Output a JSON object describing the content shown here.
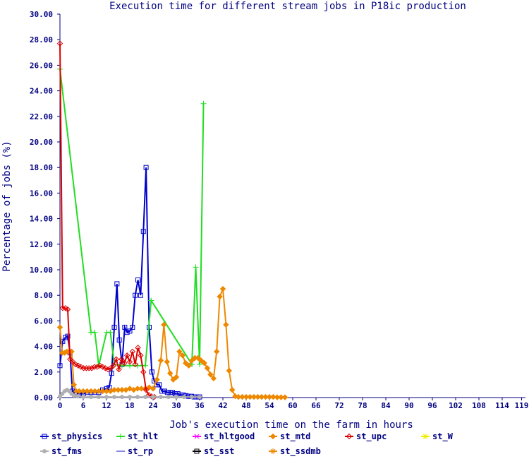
{
  "chart_data": {
    "type": "line",
    "title": "Execution time for different stream jobs in P18ic production",
    "xlabel": "Job's execution time on the farm in hours",
    "ylabel": "Percentage of jobs (%)",
    "xlim": [
      0,
      120
    ],
    "ylim": [
      0,
      30
    ],
    "x_ticks": [
      "0",
      "6",
      "12",
      "18",
      "24",
      "30",
      "36",
      "42",
      "48",
      "54",
      "60",
      "66",
      "72",
      "78",
      "84",
      "90",
      "96",
      "102",
      "108",
      "114",
      "119"
    ],
    "y_ticks": [
      "0.00",
      "2.00",
      "4.00",
      "6.00",
      "8.00",
      "10.00",
      "12.00",
      "14.00",
      "16.00",
      "18.00",
      "20.00",
      "22.00",
      "24.00",
      "26.00",
      "28.00",
      "30.00"
    ],
    "grid": false,
    "legend_position": "bottom",
    "series": [
      {
        "name": "st_physics",
        "color": "#0000cc",
        "marker": "square",
        "points": [
          [
            0,
            2.5
          ],
          [
            0.7,
            4.4
          ],
          [
            1.4,
            4.7
          ],
          [
            2,
            4.8
          ],
          [
            2.6,
            3.5
          ],
          [
            3.2,
            0.5
          ],
          [
            4,
            0.4
          ],
          [
            5,
            0.3
          ],
          [
            6,
            0.3
          ],
          [
            7,
            0.4
          ],
          [
            8,
            0.4
          ],
          [
            9,
            0.4
          ],
          [
            10,
            0.4
          ],
          [
            11,
            0.6
          ],
          [
            12,
            0.7
          ],
          [
            12.7,
            0.8
          ],
          [
            13.3,
            1.9
          ],
          [
            14,
            5.5
          ],
          [
            14.7,
            8.9
          ],
          [
            15.3,
            4.5
          ],
          [
            16,
            2.6
          ],
          [
            16.7,
            5.5
          ],
          [
            17.3,
            5.1
          ],
          [
            18,
            5.2
          ],
          [
            18.7,
            5.5
          ],
          [
            19.4,
            8.0
          ],
          [
            20.1,
            9.2
          ],
          [
            20.8,
            8.0
          ],
          [
            21.5,
            13.0
          ],
          [
            22.2,
            18.0
          ],
          [
            23,
            5.5
          ],
          [
            23.7,
            2.0
          ],
          [
            24.3,
            1.3
          ],
          [
            25,
            1.0
          ],
          [
            25.6,
            1.0
          ],
          [
            26.3,
            0.5
          ],
          [
            27,
            0.5
          ],
          [
            27.7,
            0.4
          ],
          [
            28.4,
            0.4
          ],
          [
            29,
            0.4
          ],
          [
            29.7,
            0.3
          ],
          [
            30.4,
            0.3
          ],
          [
            31.1,
            0.2
          ],
          [
            31.8,
            0.2
          ],
          [
            32.5,
            0.15
          ],
          [
            33.2,
            0.1
          ],
          [
            33.9,
            0.1
          ],
          [
            34.6,
            0.05
          ],
          [
            35.3,
            0.05
          ],
          [
            36,
            0.05
          ]
        ]
      },
      {
        "name": "st_hlt",
        "color": "#22dd22",
        "marker": "plus",
        "points": [
          [
            0,
            25.7
          ],
          [
            8,
            5.1
          ],
          [
            9,
            5.1
          ],
          [
            10,
            2.5
          ],
          [
            12,
            5.1
          ],
          [
            13,
            5.1
          ],
          [
            14,
            2.6
          ],
          [
            16,
            2.5
          ],
          [
            18,
            2.5
          ],
          [
            20,
            2.5
          ],
          [
            22,
            2.5
          ],
          [
            23.5,
            7.6
          ],
          [
            34,
            2.6
          ],
          [
            35,
            10.2
          ],
          [
            36,
            2.6
          ],
          [
            37,
            23.0
          ]
        ]
      },
      {
        "name": "st_hltgood",
        "color": "#ff00ff",
        "marker": "x",
        "points": []
      },
      {
        "name": "st_mtd",
        "color": "#ee8800",
        "marker": "diamond",
        "points": [
          [
            0,
            5.5
          ],
          [
            0.6,
            3.5
          ],
          [
            1.2,
            3.5
          ],
          [
            1.8,
            3.6
          ],
          [
            2.4,
            3.6
          ],
          [
            3,
            3.6
          ],
          [
            3.6,
            1.0
          ],
          [
            4.2,
            0.5
          ],
          [
            5,
            0.5
          ],
          [
            6,
            0.5
          ],
          [
            7,
            0.5
          ],
          [
            8,
            0.5
          ],
          [
            9,
            0.5
          ],
          [
            10,
            0.5
          ],
          [
            11,
            0.5
          ],
          [
            12,
            0.5
          ],
          [
            13,
            0.5
          ],
          [
            14,
            0.6
          ],
          [
            15,
            0.6
          ],
          [
            16,
            0.6
          ],
          [
            17,
            0.6
          ],
          [
            18,
            0.7
          ],
          [
            19,
            0.6
          ],
          [
            20,
            0.7
          ],
          [
            21,
            0.7
          ],
          [
            22,
            0.7
          ],
          [
            23,
            0.8
          ],
          [
            24,
            0.7
          ],
          [
            25,
            1.4
          ],
          [
            26,
            2.9
          ],
          [
            26.8,
            5.7
          ],
          [
            27.6,
            2.8
          ],
          [
            28.4,
            1.9
          ],
          [
            29.2,
            1.4
          ],
          [
            30,
            1.6
          ],
          [
            30.8,
            3.6
          ],
          [
            31.6,
            3.3
          ],
          [
            32.4,
            2.7
          ],
          [
            33.2,
            2.5
          ],
          [
            34,
            2.9
          ],
          [
            34.8,
            3.1
          ],
          [
            35.6,
            3.1
          ],
          [
            36.4,
            2.9
          ],
          [
            37.2,
            2.7
          ],
          [
            38,
            2.3
          ],
          [
            38.8,
            1.8
          ],
          [
            39.6,
            1.5
          ],
          [
            40.4,
            3.6
          ],
          [
            41.2,
            7.9
          ],
          [
            42,
            8.5
          ],
          [
            42.8,
            5.7
          ],
          [
            43.6,
            2.1
          ],
          [
            44.4,
            0.6
          ],
          [
            45.2,
            0.1
          ],
          [
            46,
            0.05
          ],
          [
            47,
            0.05
          ],
          [
            48,
            0.05
          ],
          [
            49,
            0.05
          ],
          [
            50,
            0.05
          ],
          [
            51,
            0.05
          ],
          [
            52,
            0.05
          ],
          [
            53,
            0.05
          ],
          [
            54,
            0.05
          ],
          [
            55,
            0.05
          ],
          [
            56,
            0.02
          ],
          [
            57,
            0.02
          ],
          [
            58,
            0.02
          ]
        ]
      },
      {
        "name": "st_upc",
        "color": "#dd0000",
        "marker": "diamond-open",
        "points": [
          [
            0,
            27.7
          ],
          [
            0.7,
            7.0
          ],
          [
            1.4,
            7.0
          ],
          [
            2,
            6.9
          ],
          [
            2.6,
            3.0
          ],
          [
            3.3,
            2.8
          ],
          [
            4,
            2.6
          ],
          [
            4.7,
            2.5
          ],
          [
            5.4,
            2.4
          ],
          [
            6.1,
            2.3
          ],
          [
            6.8,
            2.3
          ],
          [
            7.5,
            2.3
          ],
          [
            8.2,
            2.3
          ],
          [
            8.9,
            2.4
          ],
          [
            9.6,
            2.4
          ],
          [
            10.3,
            2.5
          ],
          [
            11,
            2.4
          ],
          [
            11.7,
            2.3
          ],
          [
            12.4,
            2.2
          ],
          [
            13.1,
            2.3
          ],
          [
            13.8,
            2.5
          ],
          [
            14.5,
            3.0
          ],
          [
            15.2,
            2.2
          ],
          [
            15.9,
            3.0
          ],
          [
            16.6,
            2.7
          ],
          [
            17.3,
            3.3
          ],
          [
            18,
            2.8
          ],
          [
            18.7,
            3.6
          ],
          [
            19.4,
            2.6
          ],
          [
            20.1,
            3.9
          ],
          [
            20.8,
            3.3
          ],
          [
            21.5,
            2.0
          ],
          [
            22.2,
            0.6
          ],
          [
            22.9,
            0.2
          ],
          [
            23.6,
            0.1
          ],
          [
            24.3,
            0.05
          ]
        ]
      },
      {
        "name": "st_W",
        "color": "#eeee00",
        "marker": "star",
        "points": []
      },
      {
        "name": "st_fms",
        "color": "#b0b0b0",
        "marker": "circle",
        "points": [
          [
            0,
            0.1
          ],
          [
            0.6,
            0.3
          ],
          [
            1.2,
            0.5
          ],
          [
            1.8,
            0.6
          ],
          [
            2.4,
            0.5
          ],
          [
            3,
            0.3
          ],
          [
            3.6,
            0.15
          ],
          [
            4.5,
            0.1
          ],
          [
            6,
            0.05
          ],
          [
            8,
            0.05
          ],
          [
            10,
            0.05
          ],
          [
            12,
            0.05
          ],
          [
            14,
            0.05
          ],
          [
            16,
            0.05
          ],
          [
            18,
            0.05
          ],
          [
            20,
            0.05
          ],
          [
            22,
            0.05
          ],
          [
            24,
            0.05
          ],
          [
            26,
            0.05
          ],
          [
            28,
            0.05
          ],
          [
            30,
            0.05
          ],
          [
            32,
            0.05
          ],
          [
            34,
            0.05
          ],
          [
            36,
            0.05
          ]
        ]
      },
      {
        "name": "st_rp",
        "color": "#8888dd",
        "marker": "none",
        "points": []
      },
      {
        "name": "st_sst",
        "color": "#000000",
        "marker": "square-open",
        "points": []
      },
      {
        "name": "st_ssdmb",
        "color": "#ee8800",
        "marker": "star",
        "points": []
      }
    ]
  }
}
